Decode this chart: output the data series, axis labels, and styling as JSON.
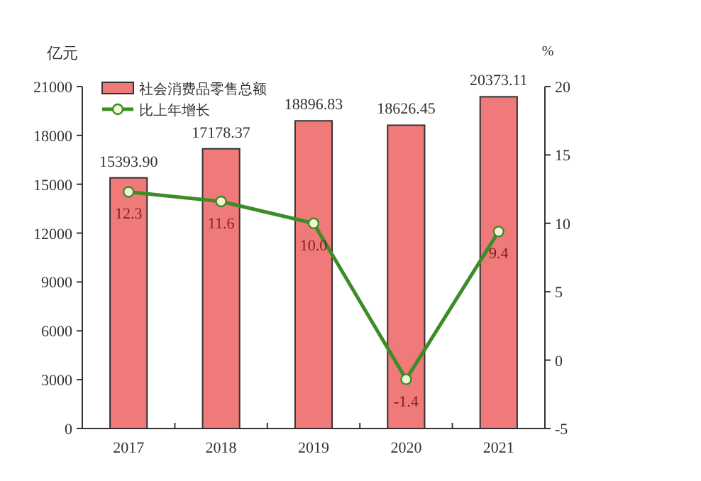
{
  "chart_data": {
    "type": "bar",
    "ylabel": "亿元",
    "y2label": "%",
    "categories": [
      "2017",
      "2018",
      "2019",
      "2020",
      "2021"
    ],
    "series": [
      {
        "name": "社会消费品零售总额",
        "color": "#f07a7a",
        "values": [
          15393.9,
          17178.37,
          18896.83,
          18626.45,
          20373.11
        ],
        "value_labels": [
          "15393.90",
          "17178.37",
          "18896.83",
          "18626.45",
          "20373.11"
        ]
      },
      {
        "name": "比上年增长",
        "type": "line",
        "axis": "y2",
        "color": "#3c8c28",
        "marker": "circle",
        "values": [
          12.3,
          11.6,
          10.0,
          -1.4,
          9.4
        ],
        "value_labels": [
          "12.3",
          "11.6",
          "10.0",
          "-1.4",
          "9.4"
        ]
      }
    ],
    "ylim": [
      0,
      21000
    ],
    "yticks": [
      0,
      3000,
      6000,
      9000,
      12000,
      15000,
      18000,
      21000
    ],
    "y2lim": [
      -5,
      20
    ],
    "y2ticks": [
      -5,
      0,
      5,
      10,
      15,
      20
    ],
    "legend": "top left",
    "grid": false
  }
}
